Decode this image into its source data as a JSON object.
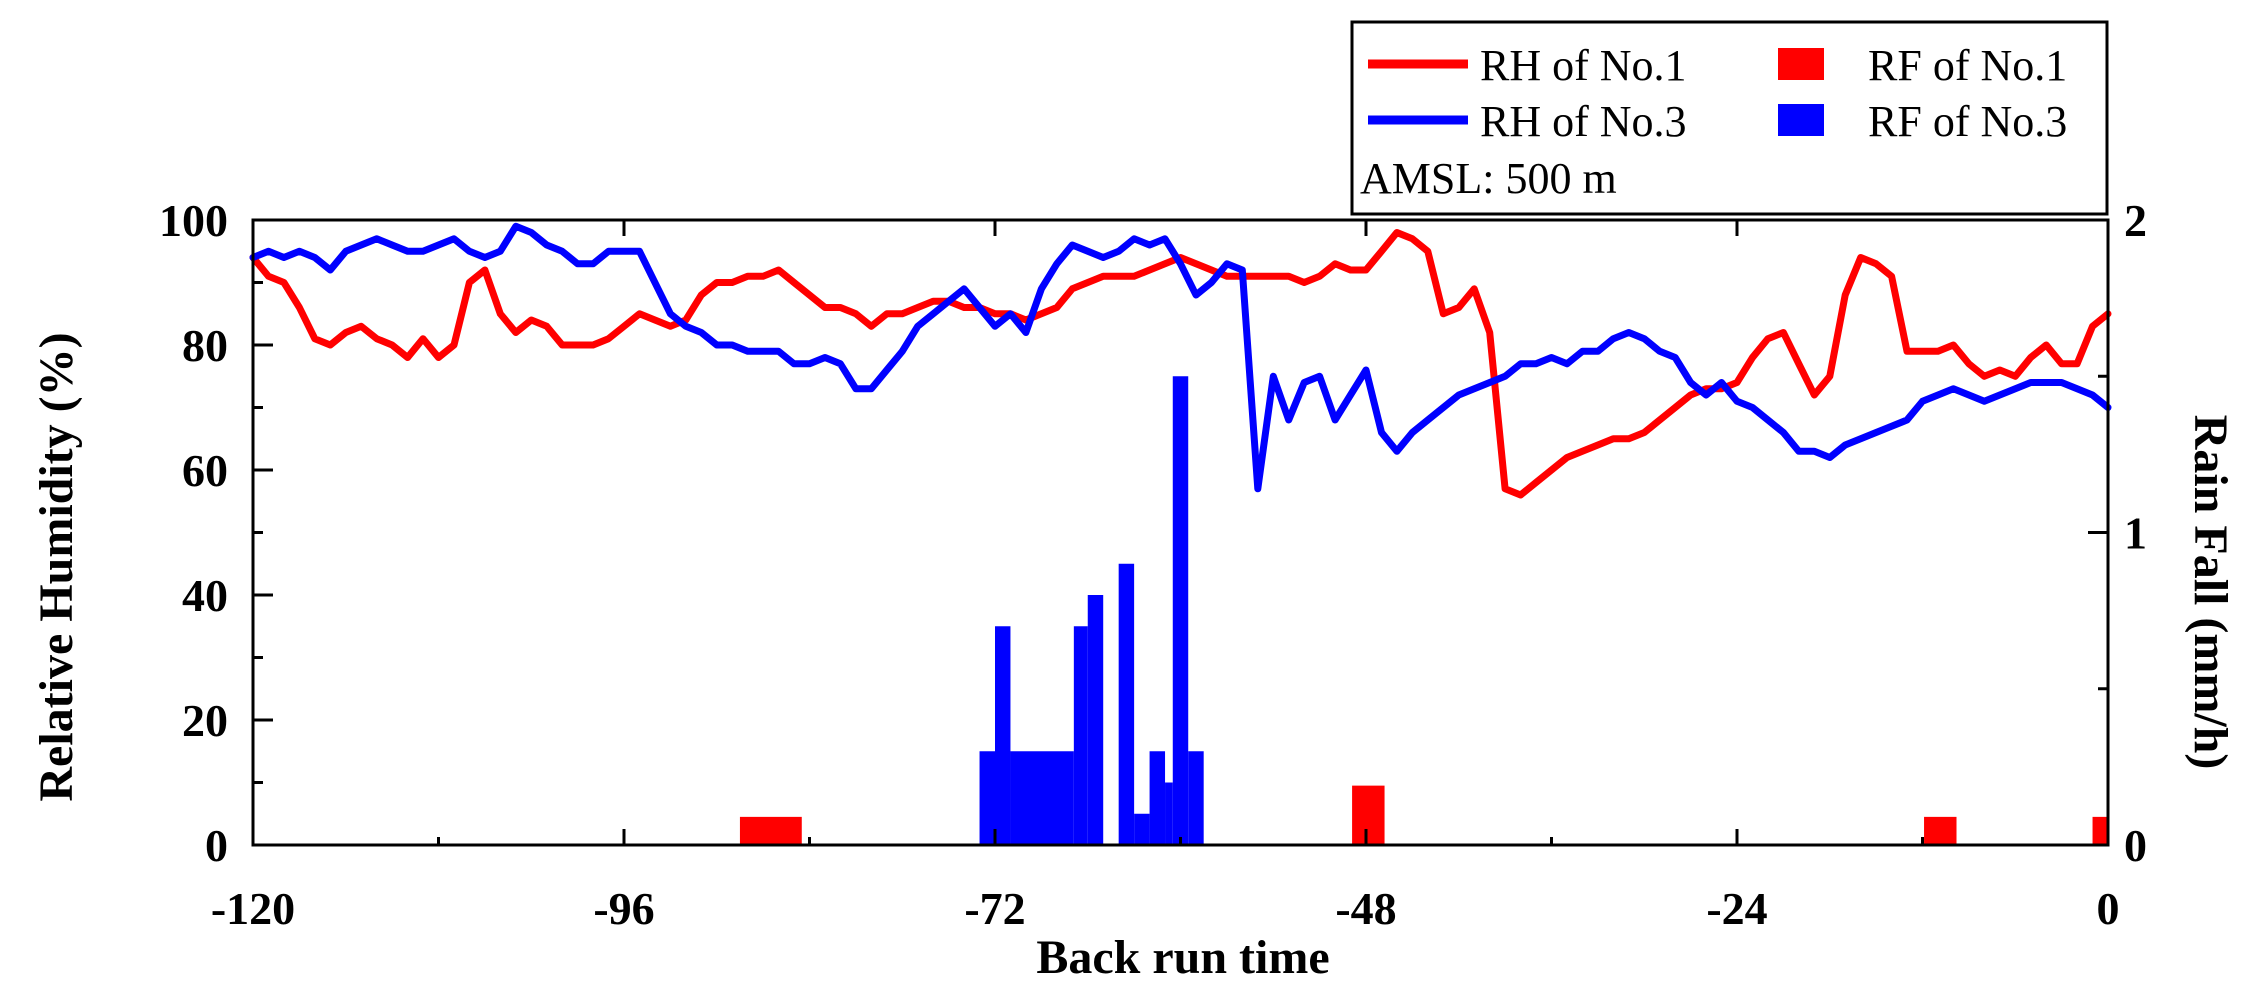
{
  "chart_data": {
    "type": "line",
    "xlabel": "Back run time",
    "ylabel": "Relative Humidity (%)",
    "y2label": "Rain Fall (mm/h)",
    "xlim": [
      -120,
      0
    ],
    "ylim": [
      0,
      100
    ],
    "y2lim": [
      0,
      2
    ],
    "xticks": [
      -120,
      -96,
      -72,
      -48,
      -24,
      0
    ],
    "yticks": [
      0,
      20,
      40,
      60,
      80,
      100
    ],
    "y2ticks": [
      0,
      1,
      2
    ],
    "legend": {
      "position": "top-right",
      "entries": [
        {
          "label": "RH of No.1",
          "color": "#ff0000",
          "kind": "line"
        },
        {
          "label": "RF of No.1",
          "color": "#ff0000",
          "kind": "bar"
        },
        {
          "label": "RH of No.3",
          "color": "#0000ff",
          "kind": "line"
        },
        {
          "label": "RF of No.3",
          "color": "#0000ff",
          "kind": "bar"
        }
      ],
      "note": "AMSL: 500 m"
    },
    "series": [
      {
        "name": "RH of No.1",
        "color": "#ff0000",
        "axis": "left",
        "type": "line",
        "x": [
          -120,
          -119,
          -118,
          -117,
          -116,
          -115,
          -114,
          -113,
          -112,
          -111,
          -110,
          -109,
          -108,
          -107,
          -106,
          -105,
          -104,
          -103,
          -102,
          -101,
          -100,
          -99,
          -98,
          -97,
          -96,
          -95,
          -94,
          -93,
          -92,
          -91,
          -90,
          -89,
          -88,
          -87,
          -86,
          -85,
          -84,
          -83,
          -82,
          -81,
          -80,
          -79,
          -78,
          -77,
          -76,
          -75,
          -74,
          -73,
          -72,
          -71,
          -70,
          -69,
          -68,
          -67,
          -66,
          -65,
          -64,
          -63,
          -62,
          -61,
          -60,
          -59,
          -58,
          -57,
          -56,
          -55,
          -54,
          -53,
          -52,
          -51,
          -50,
          -49,
          -48,
          -47,
          -46,
          -45,
          -44,
          -43,
          -42,
          -41,
          -40,
          -39,
          -38,
          -37,
          -36,
          -35,
          -34,
          -33,
          -32,
          -31,
          -30,
          -29,
          -28,
          -27,
          -26,
          -25,
          -24,
          -23,
          -22,
          -21,
          -20,
          -19,
          -18,
          -17,
          -16,
          -15,
          -14,
          -13,
          -12,
          -11,
          -10,
          -9,
          -8,
          -7,
          -6,
          -5,
          -4,
          -3,
          -2,
          -1,
          0
        ],
        "values": [
          94,
          91,
          90,
          86,
          81,
          80,
          82,
          83,
          81,
          80,
          78,
          81,
          78,
          80,
          90,
          92,
          85,
          82,
          84,
          83,
          80,
          80,
          80,
          81,
          83,
          85,
          84,
          83,
          84,
          88,
          90,
          90,
          91,
          91,
          92,
          90,
          88,
          86,
          86,
          85,
          83,
          85,
          85,
          86,
          87,
          87,
          86,
          86,
          85,
          85,
          84,
          85,
          86,
          89,
          90,
          91,
          91,
          91,
          92,
          93,
          94,
          93,
          92,
          91,
          91,
          91,
          91,
          91,
          90,
          91,
          93,
          92,
          92,
          95,
          98,
          97,
          95,
          85,
          86,
          89,
          82,
          57,
          56,
          58,
          60,
          62,
          63,
          64,
          65,
          65,
          66,
          68,
          70,
          72,
          73,
          73,
          74,
          78,
          81,
          82,
          77,
          72,
          75,
          88,
          94,
          93,
          91,
          79,
          79,
          79,
          80,
          77,
          75,
          76,
          75,
          78,
          80,
          77,
          77,
          83,
          85
        ]
      },
      {
        "name": "RH of No.3",
        "color": "#0000ff",
        "axis": "left",
        "type": "line",
        "x": [
          -120,
          -119,
          -118,
          -117,
          -116,
          -115,
          -114,
          -113,
          -112,
          -111,
          -110,
          -109,
          -108,
          -107,
          -106,
          -105,
          -104,
          -103,
          -102,
          -101,
          -100,
          -99,
          -98,
          -97,
          -96,
          -95,
          -94,
          -93,
          -92,
          -91,
          -90,
          -89,
          -88,
          -87,
          -86,
          -85,
          -84,
          -83,
          -82,
          -81,
          -80,
          -79,
          -78,
          -77,
          -76,
          -75,
          -74,
          -73,
          -72,
          -71,
          -70,
          -69,
          -68,
          -67,
          -66,
          -65,
          -64,
          -63,
          -62,
          -61,
          -60,
          -59,
          -58,
          -57,
          -56,
          -55,
          -54,
          -53,
          -52,
          -51,
          -50,
          -49,
          -48,
          -47,
          -46,
          -45,
          -44,
          -43,
          -42,
          -41,
          -40,
          -39,
          -38,
          -37,
          -36,
          -35,
          -34,
          -33,
          -32,
          -31,
          -30,
          -29,
          -28,
          -27,
          -26,
          -25,
          -24,
          -23,
          -22,
          -21,
          -20,
          -19,
          -18,
          -17,
          -16,
          -15,
          -14,
          -13,
          -12,
          -11,
          -10,
          -9,
          -8,
          -7,
          -6,
          -5,
          -4,
          -3,
          -2,
          -1,
          0
        ],
        "values": [
          94,
          95,
          94,
          95,
          94,
          92,
          95,
          96,
          97,
          96,
          95,
          95,
          96,
          97,
          95,
          94,
          95,
          99,
          98,
          96,
          95,
          93,
          93,
          95,
          95,
          95,
          90,
          85,
          83,
          82,
          80,
          80,
          79,
          79,
          79,
          77,
          77,
          78,
          77,
          73,
          73,
          76,
          79,
          83,
          85,
          87,
          89,
          86,
          83,
          85,
          82,
          89,
          93,
          96,
          95,
          94,
          95,
          97,
          96,
          97,
          93,
          88,
          90,
          93,
          92,
          57,
          75,
          68,
          74,
          75,
          68,
          72,
          76,
          66,
          63,
          66,
          68,
          70,
          72,
          73,
          74,
          75,
          77,
          77,
          78,
          77,
          79,
          79,
          81,
          82,
          81,
          79,
          78,
          74,
          72,
          74,
          71,
          70,
          68,
          66,
          63,
          63,
          62,
          64,
          65,
          66,
          67,
          68,
          71,
          72,
          73,
          72,
          71,
          72,
          73,
          74,
          74,
          74,
          73,
          72,
          70
        ]
      },
      {
        "name": "RF of No.1",
        "color": "#ff0000",
        "axis": "right",
        "type": "bar",
        "bars": [
          {
            "x0": -88.5,
            "x1": -84.5,
            "value": 0.09
          },
          {
            "x0": -48.9,
            "x1": -46.8,
            "value": 0.19
          },
          {
            "x0": -11.9,
            "x1": -9.8,
            "value": 0.09
          },
          {
            "x0": -1.0,
            "x1": 0.0,
            "value": 0.09
          }
        ]
      },
      {
        "name": "RF of No.3",
        "color": "#0000ff",
        "axis": "right",
        "type": "bar",
        "bars": [
          {
            "x0": -73.0,
            "x1": -72.0,
            "value": 0.3
          },
          {
            "x0": -72.0,
            "x1": -71.0,
            "value": 0.7
          },
          {
            "x0": -71.0,
            "x1": -66.9,
            "value": 0.3
          },
          {
            "x0": -66.9,
            "x1": -66.0,
            "value": 0.7
          },
          {
            "x0": -66.0,
            "x1": -65.0,
            "value": 0.8
          },
          {
            "x0": -64.0,
            "x1": -63.0,
            "value": 0.9
          },
          {
            "x0": -63.0,
            "x1": -62.0,
            "value": 0.1
          },
          {
            "x0": -62.0,
            "x1": -61.0,
            "value": 0.3
          },
          {
            "x0": -61.0,
            "x1": -60.5,
            "value": 0.2
          },
          {
            "x0": -60.5,
            "x1": -59.5,
            "value": 1.5
          },
          {
            "x0": -59.5,
            "x1": -58.5,
            "value": 0.3
          }
        ]
      }
    ]
  }
}
